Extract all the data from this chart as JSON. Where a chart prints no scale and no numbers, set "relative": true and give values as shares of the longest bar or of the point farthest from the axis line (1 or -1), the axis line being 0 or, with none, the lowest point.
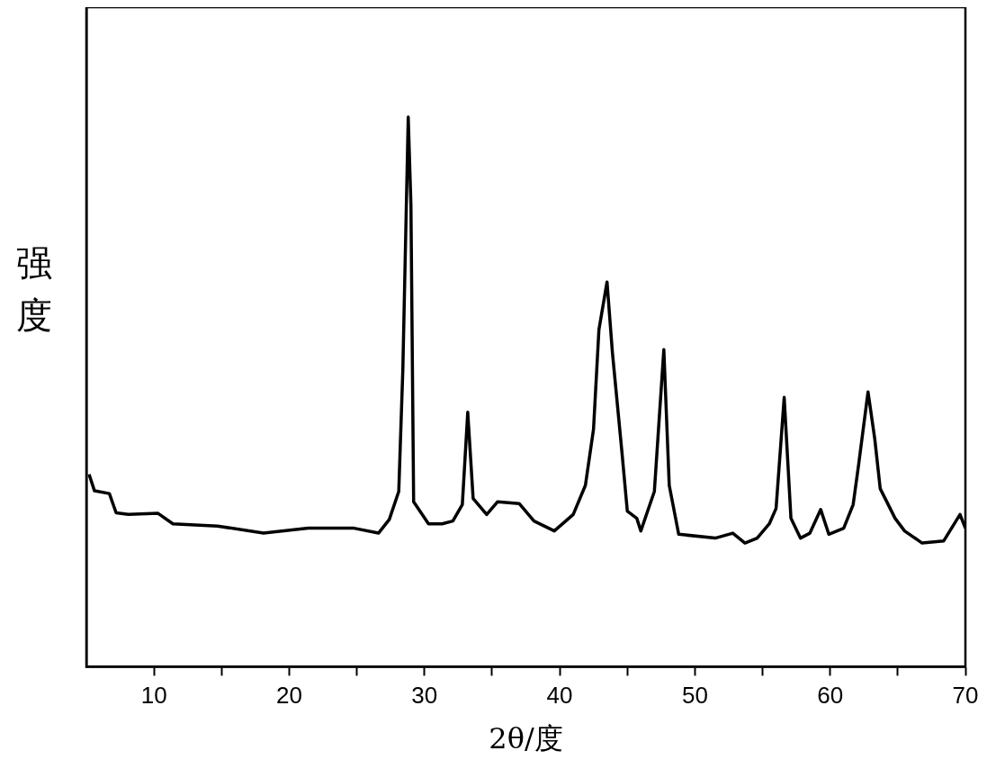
{
  "chart_data": {
    "type": "line",
    "relative": true,
    "xlabel": "2θ/度",
    "ylabel": "强度",
    "xlim": [
      5,
      70
    ],
    "xticks": [
      10,
      {
        "value": 15,
        "label": null
      },
      20,
      {
        "value": 25,
        "label": null
      },
      30,
      {
        "value": 35,
        "label": null
      },
      40,
      {
        "value": 45,
        "label": null
      },
      50,
      {
        "value": 55,
        "label": null
      },
      60,
      {
        "value": 65,
        "label": null
      },
      70
    ],
    "grid": false,
    "legend": false,
    "marker": "none",
    "line_style": "solid",
    "series": [
      {
        "color": "#000000",
        "x": [
          5.2,
          5.6,
          6.7,
          7.2,
          8.1,
          10.3,
          11.4,
          14.7,
          18.1,
          21.4,
          24.8,
          26.6,
          27.4,
          28.1,
          28.4,
          28.8,
          29.0,
          29.2,
          30.3,
          31.3,
          32.1,
          32.8,
          33.2,
          33.6,
          34.6,
          35.4,
          37.0,
          38.1,
          39.6,
          41.0,
          41.9,
          42.5,
          42.9,
          43.5,
          43.9,
          44.6,
          45.0,
          45.7,
          46.0,
          47.0,
          47.7,
          48.1,
          48.8,
          51.5,
          52.8,
          53.7,
          54.6,
          55.5,
          56.0,
          56.6,
          57.1,
          57.8,
          58.5,
          59.3,
          59.9,
          61.0,
          61.7,
          62.1,
          62.8,
          63.3,
          63.7,
          64.8,
          65.5,
          66.8,
          68.4,
          69.6,
          70.0
        ],
        "values": [
          0.35,
          0.32,
          0.315,
          0.28,
          0.277,
          0.279,
          0.26,
          0.256,
          0.243,
          0.252,
          0.252,
          0.243,
          0.268,
          0.319,
          0.54,
          1.0,
          0.84,
          0.3,
          0.26,
          0.26,
          0.265,
          0.295,
          0.463,
          0.306,
          0.277,
          0.3,
          0.297,
          0.265,
          0.247,
          0.277,
          0.33,
          0.432,
          0.613,
          0.7,
          0.571,
          0.391,
          0.283,
          0.27,
          0.247,
          0.319,
          0.577,
          0.33,
          0.241,
          0.234,
          0.243,
          0.225,
          0.234,
          0.26,
          0.288,
          0.49,
          0.27,
          0.234,
          0.243,
          0.286,
          0.241,
          0.252,
          0.295,
          0.367,
          0.5,
          0.414,
          0.324,
          0.27,
          0.247,
          0.225,
          0.229,
          0.277,
          0.252
        ]
      }
    ]
  }
}
